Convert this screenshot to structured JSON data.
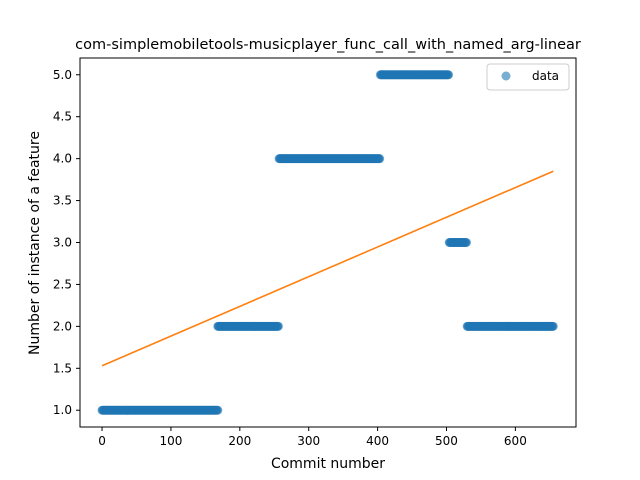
{
  "chart_data": {
    "type": "scatter",
    "title": "com-simplemobiletools-musicplayer_func_call_with_named_arg-linear",
    "xlabel": "Commit number",
    "ylabel": "Number of instance of a feature",
    "xlim": [
      -32,
      688
    ],
    "ylim": [
      0.8,
      5.2
    ],
    "x_ticks": [
      0,
      100,
      200,
      300,
      400,
      500,
      600
    ],
    "y_ticks": [
      1.0,
      1.5,
      2.0,
      2.5,
      3.0,
      3.5,
      4.0,
      4.5,
      5.0
    ],
    "x_tick_labels": [
      "0",
      "100",
      "200",
      "300",
      "400",
      "500",
      "600"
    ],
    "y_tick_labels": [
      "1.0",
      "1.5",
      "2.0",
      "2.5",
      "3.0",
      "3.5",
      "4.0",
      "4.5",
      "5.0"
    ],
    "grid": false,
    "legend_position": "top-right",
    "series": [
      {
        "name": "data",
        "kind": "points",
        "color": "#1f77b4",
        "segments": [
          {
            "x_start": 0,
            "x_end": 168,
            "y": 1
          },
          {
            "x_start": 168,
            "x_end": 256,
            "y": 2
          },
          {
            "x_start": 257,
            "x_end": 403,
            "y": 4
          },
          {
            "x_start": 404,
            "x_end": 503,
            "y": 5
          },
          {
            "x_start": 504,
            "x_end": 529,
            "y": 3
          },
          {
            "x_start": 530,
            "x_end": 655,
            "y": 2
          }
        ]
      },
      {
        "kind": "line",
        "color": "#ff7f0e",
        "x": [
          0,
          655
        ],
        "y": [
          1.53,
          3.85
        ]
      }
    ]
  }
}
